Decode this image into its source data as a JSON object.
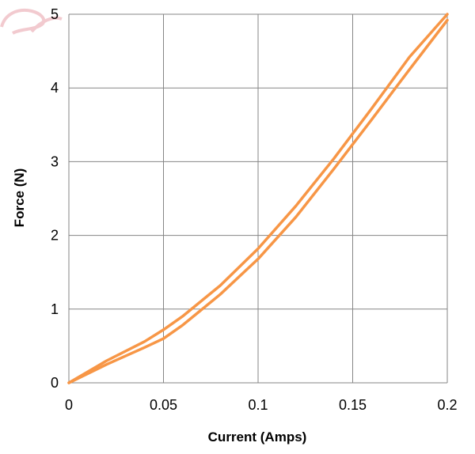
{
  "chart_data": {
    "type": "line",
    "title": "",
    "xlabel": "Current (Amps)",
    "ylabel": "Force (N)",
    "xlim": [
      0,
      0.2
    ],
    "ylim": [
      0,
      5
    ],
    "x_ticks": [
      "0",
      "0.05",
      "0.1",
      "0.15",
      "0.2"
    ],
    "y_ticks": [
      "0",
      "1",
      "2",
      "3",
      "4",
      "5"
    ],
    "grid": true,
    "legend": "none",
    "series": [
      {
        "x": [
          0,
          0.02,
          0.04,
          0.05,
          0.06,
          0.08,
          0.1,
          0.12,
          0.14,
          0.16,
          0.18,
          0.2
        ],
        "y": [
          0,
          0.3,
          0.56,
          0.72,
          0.9,
          1.32,
          1.82,
          2.4,
          3.04,
          3.72,
          4.42,
          5.0
        ]
      },
      {
        "x": [
          0,
          0.02,
          0.04,
          0.05,
          0.06,
          0.08,
          0.1,
          0.12,
          0.14,
          0.16,
          0.18,
          0.2
        ],
        "y": [
          0,
          0.25,
          0.48,
          0.6,
          0.78,
          1.2,
          1.68,
          2.25,
          2.9,
          3.57,
          4.25,
          4.92
        ]
      }
    ],
    "line_color": "#F79646"
  }
}
